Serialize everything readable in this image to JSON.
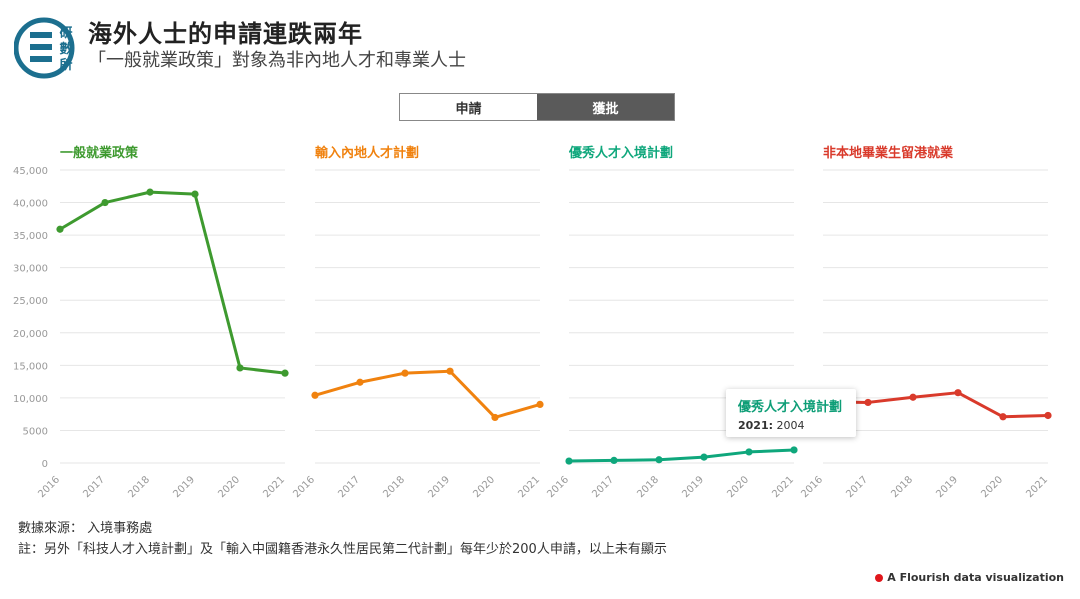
{
  "header": {
    "title": "海外人士的申請連跌兩年",
    "subtitle": "「一般就業政策」對象為非內地人才和專業人士",
    "logo_text": [
      "研",
      "數",
      "所"
    ]
  },
  "toggle": {
    "options": [
      "申請",
      "獲批"
    ],
    "selected": "申請"
  },
  "colors": {
    "series": [
      "#3e9a2f",
      "#f0820f",
      "#0fa77c",
      "#d93a2b"
    ],
    "grid": "#e6e6e6",
    "tick": "#999999"
  },
  "chart_data": {
    "type": "line",
    "x": [
      2016,
      2017,
      2018,
      2019,
      2020,
      2021
    ],
    "ylim": [
      0,
      45000
    ],
    "yticks": [
      "0",
      "5000",
      "10,000",
      "15,000",
      "20,000",
      "25,000",
      "30,000",
      "35,000",
      "40,000",
      "45,000"
    ],
    "grid": true,
    "series": [
      {
        "name": "一般就業政策",
        "values": [
          35900,
          40000,
          41600,
          41300,
          14600,
          13800
        ]
      },
      {
        "name": "輸入內地人才計劃",
        "values": [
          10400,
          12400,
          13800,
          14100,
          7000,
          9000
        ]
      },
      {
        "name": "優秀人才入境計劃",
        "values": [
          300,
          400,
          500,
          900,
          1700,
          2004
        ]
      },
      {
        "name": "非本地畢業生留港就業",
        "values": [
          9400,
          9300,
          10100,
          10800,
          7100,
          7300
        ]
      }
    ]
  },
  "tooltip": {
    "title": "優秀人才入境計劃",
    "year": "2021:",
    "value": "2004"
  },
  "footer": {
    "source": "數據來源： 入境事務處",
    "note": "註：另外「科技人才入境計劃」及「輸入中國籍香港永久性居民第二代計劃」每年少於200人申請，以上未有顯示",
    "credit": "A Flourish data visualization"
  }
}
